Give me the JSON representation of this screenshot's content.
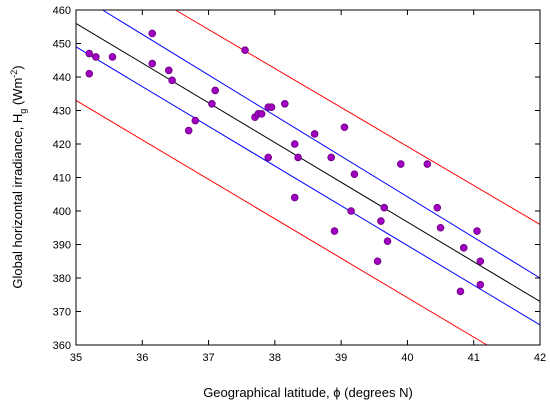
{
  "chart_data": {
    "type": "scatter",
    "xlabel": "Geographical latitude, ϕ (degrees N)",
    "ylabel_main": "Global horizontal irradiance, H",
    "ylabel_sub": "g",
    "ylabel_unit_pre": " (Wm",
    "ylabel_unit_sup": "-2",
    "ylabel_unit_post": ")",
    "xlim": [
      35,
      42
    ],
    "ylim": [
      360,
      460
    ],
    "xticks": [
      "35",
      "36",
      "37",
      "38",
      "39",
      "40",
      "41",
      "42"
    ],
    "yticks": [
      "360",
      "370",
      "380",
      "390",
      "400",
      "410",
      "420",
      "430",
      "440",
      "450",
      "460"
    ],
    "grid": false,
    "colors": {
      "fit": "#000000",
      "confidence": "#0000ff",
      "prediction": "#ff0000",
      "point_fill": "#a000c0",
      "point_stroke": "#6a0080"
    },
    "lines": [
      {
        "role": "regression",
        "color": "#000000",
        "x": [
          35,
          42
        ],
        "y": [
          456.0,
          373.0
        ]
      },
      {
        "role": "confidence-upper",
        "color": "#0000ff",
        "x": [
          35.4,
          42
        ],
        "y": [
          460.0,
          380.0
        ]
      },
      {
        "role": "confidence-lower",
        "color": "#0000ff",
        "x": [
          35,
          42
        ],
        "y": [
          449.0,
          366.0
        ]
      },
      {
        "role": "prediction-upper",
        "color": "#ff0000",
        "x": [
          36.5,
          42
        ],
        "y": [
          460.0,
          396.0
        ]
      },
      {
        "role": "prediction-lower",
        "color": "#ff0000",
        "x": [
          35,
          41.2
        ],
        "y": [
          433.0,
          360.0
        ]
      }
    ],
    "points": [
      {
        "x": 35.2,
        "y": 447
      },
      {
        "x": 35.2,
        "y": 441
      },
      {
        "x": 35.3,
        "y": 446
      },
      {
        "x": 35.55,
        "y": 446
      },
      {
        "x": 36.15,
        "y": 453
      },
      {
        "x": 36.15,
        "y": 444
      },
      {
        "x": 36.4,
        "y": 442
      },
      {
        "x": 36.45,
        "y": 439
      },
      {
        "x": 36.7,
        "y": 424
      },
      {
        "x": 36.8,
        "y": 427
      },
      {
        "x": 37.05,
        "y": 432
      },
      {
        "x": 37.1,
        "y": 436
      },
      {
        "x": 37.55,
        "y": 448
      },
      {
        "x": 37.7,
        "y": 428
      },
      {
        "x": 37.75,
        "y": 429
      },
      {
        "x": 37.8,
        "y": 429
      },
      {
        "x": 37.9,
        "y": 431
      },
      {
        "x": 37.95,
        "y": 431
      },
      {
        "x": 37.9,
        "y": 416
      },
      {
        "x": 38.15,
        "y": 432
      },
      {
        "x": 38.3,
        "y": 420
      },
      {
        "x": 38.35,
        "y": 416
      },
      {
        "x": 38.3,
        "y": 404
      },
      {
        "x": 38.6,
        "y": 423
      },
      {
        "x": 38.85,
        "y": 416
      },
      {
        "x": 38.9,
        "y": 394
      },
      {
        "x": 39.05,
        "y": 425
      },
      {
        "x": 39.15,
        "y": 400
      },
      {
        "x": 39.2,
        "y": 411
      },
      {
        "x": 39.55,
        "y": 385
      },
      {
        "x": 39.6,
        "y": 397
      },
      {
        "x": 39.65,
        "y": 401
      },
      {
        "x": 39.7,
        "y": 391
      },
      {
        "x": 39.9,
        "y": 414
      },
      {
        "x": 40.3,
        "y": 414
      },
      {
        "x": 40.45,
        "y": 401
      },
      {
        "x": 40.5,
        "y": 395
      },
      {
        "x": 40.8,
        "y": 376
      },
      {
        "x": 40.85,
        "y": 389
      },
      {
        "x": 41.05,
        "y": 394
      },
      {
        "x": 41.1,
        "y": 385
      },
      {
        "x": 41.1,
        "y": 378
      }
    ]
  }
}
